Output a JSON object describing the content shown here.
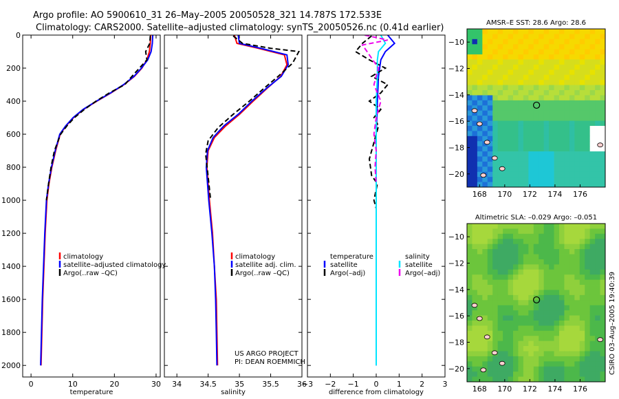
{
  "title_line1": "Argo profile: AO 5900610_31 26–May–2005 20050528_321 14.787S 172.533E",
  "title_line2": "Climatology: CARS2000. Satellite–adjusted climatology: synTS_20050526.nc (0.41d earlier)",
  "side_label": "CSIRO 03–Aug–2005 19:40:39",
  "project_line1": "US ARGO PROJECT",
  "project_line2": "PI: DEAN ROEMMICH",
  "colors": {
    "climatology": "#ff0000",
    "satellite": "#0000ff",
    "argo": "#000000",
    "satellite_salinity": "#00e5ff",
    "argo_salinity": "#ee00ee"
  },
  "chart_data": [
    {
      "type": "line",
      "xlabel": "temperature",
      "ylabel": "",
      "xlim": [
        -2,
        31
      ],
      "ylim": [
        2070,
        0
      ],
      "xticks": [
        0,
        10,
        20,
        30
      ],
      "yticks": [
        0,
        200,
        400,
        600,
        800,
        1000,
        1200,
        1400,
        1600,
        1800,
        2000
      ],
      "legend": [
        "climatology",
        "satellite–adjusted climatology",
        "Argo(..raw –QC)"
      ],
      "series": [
        {
          "name": "climatology",
          "style": "solid",
          "color": "#ff0000",
          "x": [
            28.7,
            28.6,
            28.4,
            27.8,
            26.6,
            24.8,
            22.3,
            19.2,
            15.8,
            12.6,
            10.2,
            8.4,
            7.0,
            5.9,
            5.0,
            4.3,
            3.8,
            3.4,
            3.1,
            2.8,
            2.6,
            2.5,
            2.4
          ],
          "y": [
            0,
            50,
            100,
            150,
            200,
            250,
            300,
            350,
            400,
            450,
            500,
            550,
            600,
            700,
            800,
            900,
            1000,
            1200,
            1400,
            1600,
            1800,
            1900,
            2000
          ]
        },
        {
          "name": "satellite–adjusted climatology",
          "style": "solid",
          "color": "#0000ff",
          "x": [
            29.2,
            29.1,
            28.8,
            28.0,
            26.5,
            24.7,
            22.2,
            19.1,
            15.7,
            12.5,
            10.1,
            8.3,
            6.9,
            5.8,
            4.9,
            4.2,
            3.7,
            3.3,
            3.0,
            2.7,
            2.5,
            2.4,
            2.3
          ],
          "y": [
            0,
            50,
            100,
            150,
            200,
            250,
            300,
            350,
            400,
            450,
            500,
            550,
            600,
            700,
            800,
            900,
            1000,
            1200,
            1400,
            1600,
            1800,
            1900,
            2000
          ]
        },
        {
          "name": "Argo(..raw –QC)",
          "style": "dashed",
          "color": "#000000",
          "x": [
            28.6,
            28.5,
            27.5,
            27.8,
            26.0,
            24.2,
            22.5,
            18.8,
            15.6,
            12.8,
            10.4,
            8.6,
            7.1,
            5.6,
            4.8,
            4.2,
            3.7
          ],
          "y": [
            5,
            50,
            100,
            150,
            200,
            250,
            300,
            350,
            400,
            450,
            500,
            550,
            600,
            700,
            800,
            900,
            1000
          ]
        }
      ]
    },
    {
      "type": "line",
      "xlabel": "salinity",
      "ylabel": "",
      "xlim": [
        33.8,
        36.0
      ],
      "ylim": [
        2070,
        0
      ],
      "xticks": [
        34,
        34.5,
        35,
        35.5,
        36
      ],
      "yticks": [],
      "legend": [
        "climatology",
        "satellite adj. clim.",
        "Argo(..raw –QC)"
      ],
      "series": [
        {
          "name": "climatology",
          "style": "solid",
          "color": "#ff0000",
          "x": [
            34.92,
            34.96,
            35.3,
            35.72,
            35.76,
            35.66,
            35.45,
            35.22,
            35.0,
            34.78,
            34.6,
            34.5,
            34.48,
            34.52,
            34.57,
            34.6,
            34.63,
            34.64,
            34.65
          ],
          "y": [
            0,
            50,
            80,
            120,
            180,
            250,
            320,
            400,
            480,
            550,
            620,
            700,
            800,
            1000,
            1200,
            1400,
            1600,
            1800,
            2000
          ]
        },
        {
          "name": "satellite adj. clim.",
          "style": "solid",
          "color": "#0000ff",
          "x": [
            34.98,
            35.0,
            35.34,
            35.76,
            35.78,
            35.67,
            35.44,
            35.2,
            34.98,
            34.75,
            34.58,
            34.49,
            34.47,
            34.51,
            34.56,
            34.6,
            34.62,
            34.63,
            34.64
          ],
          "y": [
            0,
            50,
            80,
            120,
            180,
            250,
            320,
            400,
            480,
            550,
            620,
            700,
            800,
            1000,
            1200,
            1400,
            1600,
            1800,
            2000
          ]
        },
        {
          "name": "Argo(..raw –QC)",
          "style": "dashed",
          "color": "#000000",
          "x": [
            34.9,
            35.05,
            35.5,
            35.95,
            35.85,
            35.62,
            35.4,
            35.16,
            34.9,
            34.66,
            34.5,
            34.46,
            34.49,
            34.54
          ],
          "y": [
            5,
            50,
            80,
            100,
            170,
            250,
            320,
            400,
            480,
            560,
            640,
            720,
            820,
            1000
          ]
        }
      ]
    },
    {
      "type": "line",
      "xlabel": "difference from climatology",
      "ylabel": "",
      "xlim": [
        -3,
        3
      ],
      "ylim": [
        2070,
        0
      ],
      "xticks": [
        -3,
        -2,
        -1,
        0,
        1,
        2,
        3
      ],
      "yticks": [],
      "legend": [
        "temperature",
        "satellite",
        "Argo(–adj)",
        "salinity",
        "satellite",
        "Argo(–adj)"
      ],
      "series": [
        {
          "name": "satellite",
          "group": "temperature",
          "style": "solid",
          "color": "#0000ff",
          "x": [
            0.5,
            0.8,
            0.4,
            0.2,
            0.1,
            0.05,
            0,
            0,
            0,
            0,
            0
          ],
          "y": [
            0,
            50,
            100,
            150,
            250,
            400,
            600,
            900,
            1200,
            1600,
            2000
          ]
        },
        {
          "name": "Argo(–adj)",
          "group": "temperature",
          "style": "dashed",
          "color": "#000000",
          "x": [
            -0.2,
            -0.6,
            -0.9,
            -0.3,
            0.4,
            -0.2,
            0.5,
            0.2,
            -0.3,
            0.2,
            -0.1,
            0.1,
            -0.1,
            -0.3,
            -0.2,
            0.05,
            -0.1,
            0
          ],
          "y": [
            5,
            50,
            100,
            150,
            200,
            250,
            300,
            350,
            400,
            450,
            500,
            550,
            650,
            750,
            850,
            900,
            1000,
            1050
          ]
        },
        {
          "name": "satellite",
          "group": "salinity",
          "style": "solid",
          "color": "#00e5ff",
          "x": [
            0.2,
            0.4,
            0.1,
            0.05,
            0.05,
            0,
            0,
            0,
            0,
            0
          ],
          "y": [
            0,
            50,
            100,
            150,
            250,
            400,
            800,
            1200,
            1600,
            2000
          ]
        },
        {
          "name": "Argo(–adj)",
          "group": "salinity",
          "style": "dashed",
          "color": "#ee00ee",
          "x": [
            -0.5,
            0.5,
            -0.6,
            -0.3,
            0.1,
            -0.1,
            0.2,
            0,
            -0.1,
            0,
            -0.05,
            0
          ],
          "y": [
            0,
            30,
            60,
            120,
            200,
            300,
            400,
            500,
            600,
            700,
            800,
            900
          ]
        }
      ]
    },
    {
      "type": "heatmap",
      "title": "AMSR–E SST: 28.6 Argo: 28.6",
      "xlim": [
        167,
        178
      ],
      "ylim": [
        -21,
        -9
      ],
      "xticks": [
        168,
        170,
        172,
        174,
        176
      ],
      "yticks": [
        -10,
        -12,
        -14,
        -16,
        -18,
        -20
      ],
      "marker": {
        "lon": 172.533,
        "lat": -14.787
      }
    },
    {
      "type": "heatmap",
      "title": "Altimetric SLA: –0.029 Argo: –0.051",
      "xlim": [
        167,
        178
      ],
      "ylim": [
        -21,
        -9
      ],
      "xticks": [
        168,
        170,
        172,
        174,
        176
      ],
      "yticks": [
        -10,
        -12,
        -14,
        -16,
        -18,
        -20
      ],
      "marker": {
        "lon": 172.533,
        "lat": -14.787
      }
    }
  ]
}
